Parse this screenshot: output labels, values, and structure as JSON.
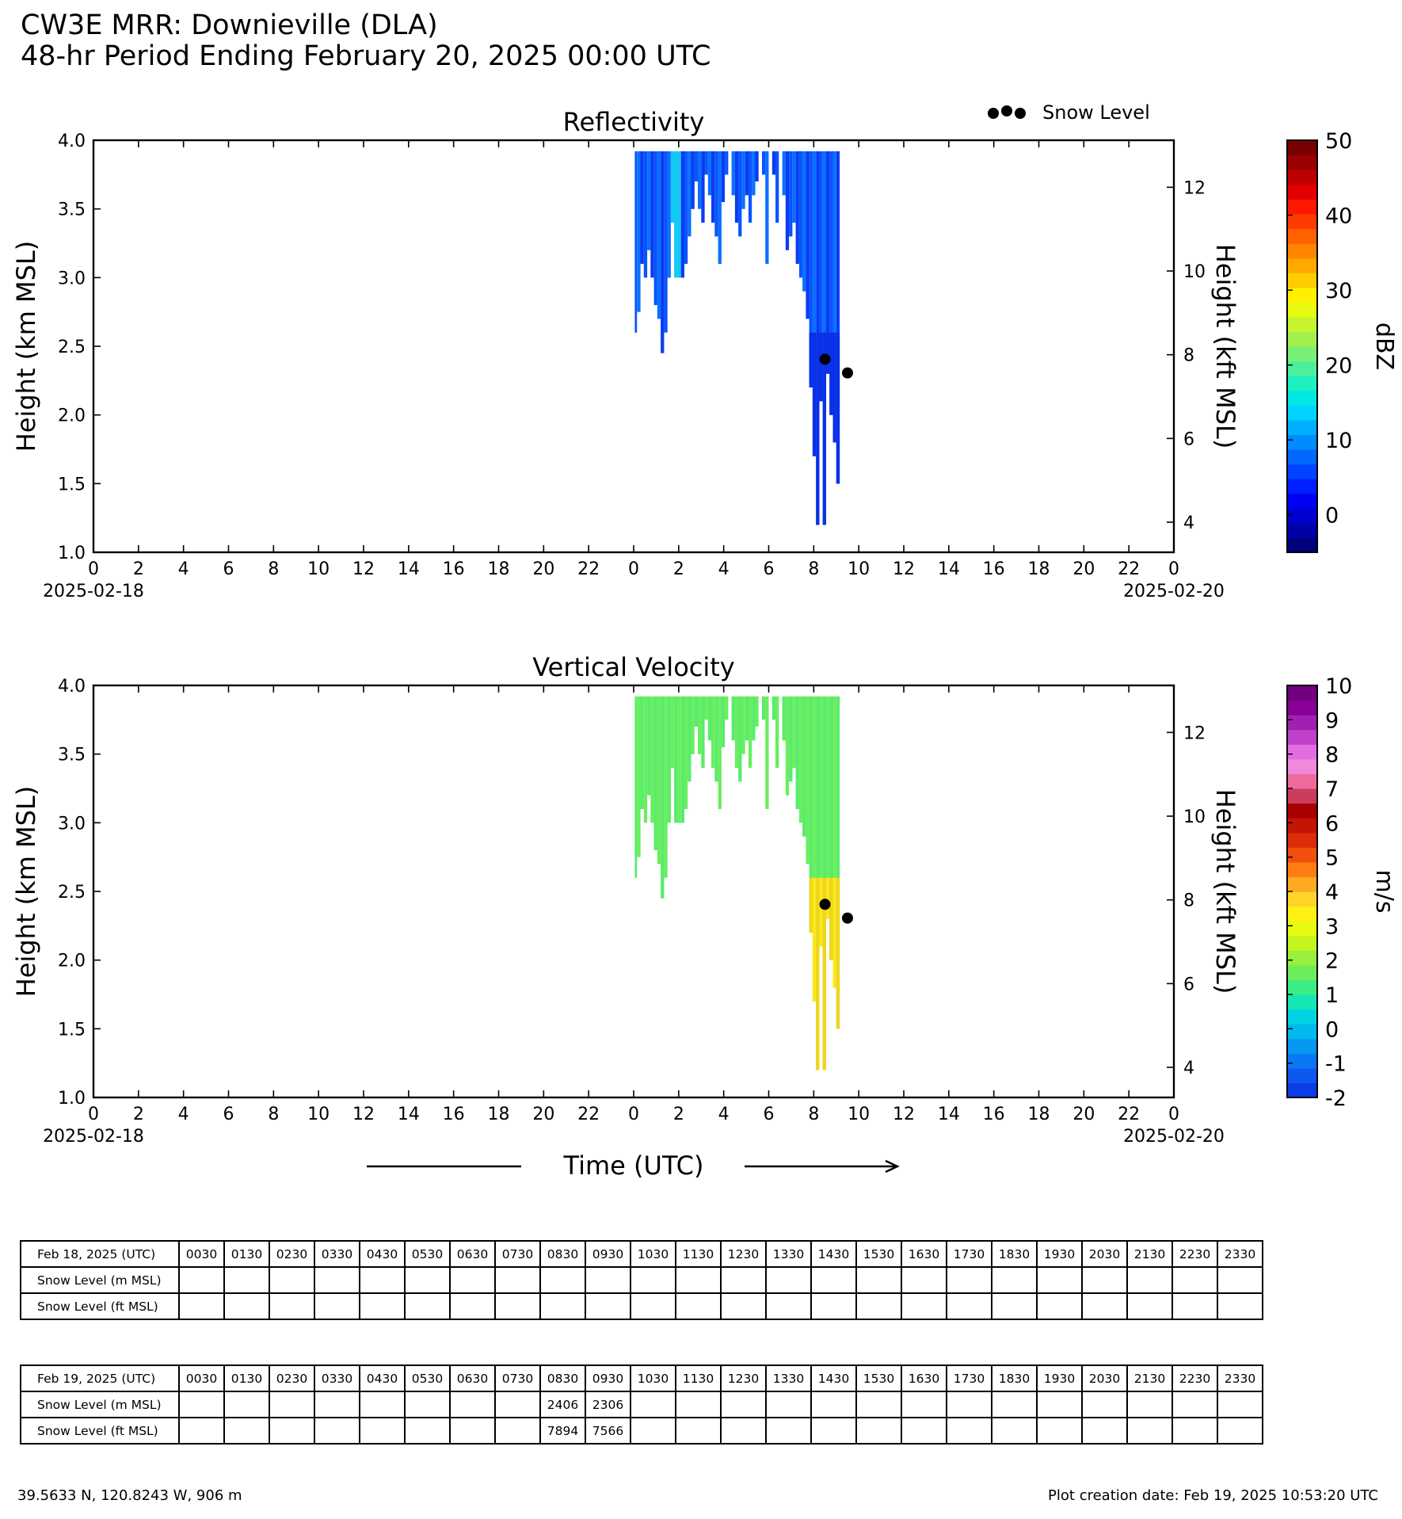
{
  "header": {
    "title": "CW3E MRR: Downieville (DLA)",
    "subtitle": "48-hr Period Ending February 20, 2025 00:00 UTC"
  },
  "legend": {
    "snow_level_label": "Snow Level"
  },
  "chart_data": [
    {
      "type": "heatmap",
      "title": "Reflectivity",
      "ylabel": "Height (km MSL)",
      "ylabel_right": "Height (kft MSL)",
      "ylim": [
        1.0,
        4.0
      ],
      "yticks": [
        "1.0",
        "1.5",
        "2.0",
        "2.5",
        "3.0",
        "3.5",
        "4.0"
      ],
      "yticks_right": [
        "4",
        "6",
        "8",
        "10",
        "12"
      ],
      "xlim_hours": [
        0,
        48
      ],
      "xticks": [
        "0",
        "2",
        "4",
        "6",
        "8",
        "10",
        "12",
        "14",
        "16",
        "18",
        "20",
        "22",
        "0",
        "2",
        "4",
        "6",
        "8",
        "10",
        "12",
        "14",
        "16",
        "18",
        "20",
        "22",
        "0"
      ],
      "x_date_start": "2025-02-18",
      "x_date_end": "2025-02-20",
      "colorbar": {
        "label": "dBZ",
        "min": -5,
        "max": 50,
        "ticks": [
          "0",
          "10",
          "20",
          "30",
          "40",
          "50"
        ],
        "colors": [
          "#00007a",
          "#0000a8",
          "#0000d0",
          "#0000f2",
          "#0020ff",
          "#0044ff",
          "#0068ff",
          "#008cff",
          "#00b0ff",
          "#00d4ff",
          "#00e8e4",
          "#1ff0c0",
          "#4cf09c",
          "#78f078",
          "#a2ef4e",
          "#c6f52e",
          "#e8fa12",
          "#fff000",
          "#ffcc00",
          "#ffa800",
          "#ff8400",
          "#ff6000",
          "#ff3c00",
          "#ff1800",
          "#e40000",
          "#c00000",
          "#9a0000",
          "#780000"
        ]
      },
      "echo_profiles": [
        {
          "h": 24.05,
          "bottom_km": 2.6
        },
        {
          "h": 24.15,
          "bottom_km": 2.75
        },
        {
          "h": 24.3,
          "bottom_km": 3.1
        },
        {
          "h": 24.45,
          "bottom_km": 3.0
        },
        {
          "h": 24.6,
          "bottom_km": 3.2
        },
        {
          "h": 24.75,
          "bottom_km": 3.0
        },
        {
          "h": 24.9,
          "bottom_km": 2.8
        },
        {
          "h": 25.05,
          "bottom_km": 2.7
        },
        {
          "h": 25.2,
          "bottom_km": 2.45
        },
        {
          "h": 25.35,
          "bottom_km": 2.6
        },
        {
          "h": 25.5,
          "bottom_km": 3.0
        },
        {
          "h": 25.65,
          "bottom_km": 3.4
        },
        {
          "h": 25.8,
          "bottom_km": 3.0
        },
        {
          "h": 25.95,
          "bottom_km": 3.0
        },
        {
          "h": 26.1,
          "bottom_km": 3.0
        },
        {
          "h": 26.25,
          "bottom_km": 3.1
        },
        {
          "h": 26.4,
          "bottom_km": 3.3
        },
        {
          "h": 26.55,
          "bottom_km": 3.5
        },
        {
          "h": 26.7,
          "bottom_km": 3.7
        },
        {
          "h": 26.85,
          "bottom_km": 3.5
        },
        {
          "h": 27.0,
          "bottom_km": 3.4
        },
        {
          "h": 27.15,
          "bottom_km": 3.75
        },
        {
          "h": 27.3,
          "bottom_km": 3.6
        },
        {
          "h": 27.45,
          "bottom_km": 3.4
        },
        {
          "h": 27.6,
          "bottom_km": 3.3
        },
        {
          "h": 27.75,
          "bottom_km": 3.1
        },
        {
          "h": 27.9,
          "bottom_km": 3.55
        },
        {
          "h": 28.05,
          "bottom_km": 3.75
        },
        {
          "h": 28.35,
          "bottom_km": 3.6
        },
        {
          "h": 28.5,
          "bottom_km": 3.4
        },
        {
          "h": 28.65,
          "bottom_km": 3.3
        },
        {
          "h": 28.8,
          "bottom_km": 3.5
        },
        {
          "h": 28.95,
          "bottom_km": 3.6
        },
        {
          "h": 29.1,
          "bottom_km": 3.4
        },
        {
          "h": 29.25,
          "bottom_km": 3.6
        },
        {
          "h": 29.4,
          "bottom_km": 3.7
        },
        {
          "h": 29.7,
          "bottom_km": 3.75
        },
        {
          "h": 29.85,
          "bottom_km": 3.1
        },
        {
          "h": 30.15,
          "bottom_km": 3.75
        },
        {
          "h": 30.3,
          "bottom_km": 3.4
        },
        {
          "h": 30.6,
          "bottom_km": 3.6
        },
        {
          "h": 30.75,
          "bottom_km": 3.2
        },
        {
          "h": 30.9,
          "bottom_km": 3.3
        },
        {
          "h": 31.05,
          "bottom_km": 3.4
        },
        {
          "h": 31.2,
          "bottom_km": 3.1
        },
        {
          "h": 31.35,
          "bottom_km": 3.0
        },
        {
          "h": 31.5,
          "bottom_km": 2.9
        },
        {
          "h": 31.65,
          "bottom_km": 2.7
        },
        {
          "h": 31.8,
          "bottom_km": 2.2
        },
        {
          "h": 31.95,
          "bottom_km": 1.7
        },
        {
          "h": 32.1,
          "bottom_km": 1.2
        },
        {
          "h": 32.25,
          "bottom_km": 2.1
        },
        {
          "h": 32.4,
          "bottom_km": 1.2
        },
        {
          "h": 32.55,
          "bottom_km": 2.3
        },
        {
          "h": 32.7,
          "bottom_km": 2.0
        },
        {
          "h": 32.85,
          "bottom_km": 1.8
        },
        {
          "h": 33.0,
          "bottom_km": 1.5
        }
      ],
      "snow_level_points": [
        {
          "h": 32.5,
          "km": 2.406
        },
        {
          "h": 33.5,
          "km": 2.306
        }
      ]
    },
    {
      "type": "heatmap",
      "title": "Vertical Velocity",
      "ylabel": "Height (km MSL)",
      "ylabel_right": "Height (kft MSL)",
      "xlabel": "Time (UTC)",
      "ylim": [
        1.0,
        4.0
      ],
      "yticks": [
        "1.0",
        "1.5",
        "2.0",
        "2.5",
        "3.0",
        "3.5",
        "4.0"
      ],
      "yticks_right": [
        "4",
        "6",
        "8",
        "10",
        "12"
      ],
      "xlim_hours": [
        0,
        48
      ],
      "xticks": [
        "0",
        "2",
        "4",
        "6",
        "8",
        "10",
        "12",
        "14",
        "16",
        "18",
        "20",
        "22",
        "0",
        "2",
        "4",
        "6",
        "8",
        "10",
        "12",
        "14",
        "16",
        "18",
        "20",
        "22",
        "0"
      ],
      "x_date_start": "2025-02-18",
      "x_date_end": "2025-02-20",
      "colorbar": {
        "label": "m/s",
        "min": -2,
        "max": 10,
        "ticks": [
          "-2",
          "-1",
          "0",
          "1",
          "2",
          "3",
          "4",
          "5",
          "6",
          "7",
          "8",
          "9",
          "10"
        ],
        "colors": [
          "#0a3ce8",
          "#0e58f0",
          "#0a78f4",
          "#0698f0",
          "#02b8ec",
          "#00d4e4",
          "#14e6b4",
          "#3cec84",
          "#6cee5c",
          "#98f03c",
          "#c4f51e",
          "#e8fa10",
          "#fff014",
          "#ffd428",
          "#ffaa20",
          "#ff7c14",
          "#f0500c",
          "#dc2c08",
          "#c41404",
          "#a80000",
          "#cc3c5c",
          "#ee6a9a",
          "#f088dc",
          "#e06ee0",
          "#c040c8",
          "#a020b0",
          "#880098",
          "#720080"
        ]
      },
      "echo_profiles": [
        {
          "h": 24.05,
          "bottom_km": 2.6
        },
        {
          "h": 24.15,
          "bottom_km": 2.75
        },
        {
          "h": 24.3,
          "bottom_km": 3.1
        },
        {
          "h": 24.45,
          "bottom_km": 3.0
        },
        {
          "h": 24.6,
          "bottom_km": 3.2
        },
        {
          "h": 24.75,
          "bottom_km": 3.0
        },
        {
          "h": 24.9,
          "bottom_km": 2.8
        },
        {
          "h": 25.05,
          "bottom_km": 2.7
        },
        {
          "h": 25.2,
          "bottom_km": 2.45
        },
        {
          "h": 25.35,
          "bottom_km": 2.6
        },
        {
          "h": 25.5,
          "bottom_km": 3.0
        },
        {
          "h": 25.65,
          "bottom_km": 3.4
        },
        {
          "h": 25.8,
          "bottom_km": 3.0
        },
        {
          "h": 25.95,
          "bottom_km": 3.0
        },
        {
          "h": 26.1,
          "bottom_km": 3.0
        },
        {
          "h": 26.25,
          "bottom_km": 3.1
        },
        {
          "h": 26.4,
          "bottom_km": 3.3
        },
        {
          "h": 26.55,
          "bottom_km": 3.5
        },
        {
          "h": 26.7,
          "bottom_km": 3.7
        },
        {
          "h": 26.85,
          "bottom_km": 3.5
        },
        {
          "h": 27.0,
          "bottom_km": 3.4
        },
        {
          "h": 27.15,
          "bottom_km": 3.75
        },
        {
          "h": 27.3,
          "bottom_km": 3.6
        },
        {
          "h": 27.45,
          "bottom_km": 3.4
        },
        {
          "h": 27.6,
          "bottom_km": 3.3
        },
        {
          "h": 27.75,
          "bottom_km": 3.1
        },
        {
          "h": 27.9,
          "bottom_km": 3.55
        },
        {
          "h": 28.05,
          "bottom_km": 3.75
        },
        {
          "h": 28.35,
          "bottom_km": 3.6
        },
        {
          "h": 28.5,
          "bottom_km": 3.4
        },
        {
          "h": 28.65,
          "bottom_km": 3.3
        },
        {
          "h": 28.8,
          "bottom_km": 3.5
        },
        {
          "h": 28.95,
          "bottom_km": 3.6
        },
        {
          "h": 29.1,
          "bottom_km": 3.4
        },
        {
          "h": 29.25,
          "bottom_km": 3.6
        },
        {
          "h": 29.4,
          "bottom_km": 3.7
        },
        {
          "h": 29.7,
          "bottom_km": 3.75
        },
        {
          "h": 29.85,
          "bottom_km": 3.1
        },
        {
          "h": 30.15,
          "bottom_km": 3.75
        },
        {
          "h": 30.3,
          "bottom_km": 3.4
        },
        {
          "h": 30.6,
          "bottom_km": 3.6
        },
        {
          "h": 30.75,
          "bottom_km": 3.2
        },
        {
          "h": 30.9,
          "bottom_km": 3.3
        },
        {
          "h": 31.05,
          "bottom_km": 3.4
        },
        {
          "h": 31.2,
          "bottom_km": 3.1
        },
        {
          "h": 31.35,
          "bottom_km": 3.0
        },
        {
          "h": 31.5,
          "bottom_km": 2.9
        },
        {
          "h": 31.65,
          "bottom_km": 2.7
        },
        {
          "h": 31.8,
          "bottom_km": 2.2
        },
        {
          "h": 31.95,
          "bottom_km": 1.7
        },
        {
          "h": 32.1,
          "bottom_km": 1.2
        },
        {
          "h": 32.25,
          "bottom_km": 2.1
        },
        {
          "h": 32.4,
          "bottom_km": 1.2
        },
        {
          "h": 32.55,
          "bottom_km": 2.3
        },
        {
          "h": 32.7,
          "bottom_km": 2.0
        },
        {
          "h": 32.85,
          "bottom_km": 1.8
        },
        {
          "h": 33.0,
          "bottom_km": 1.5
        }
      ],
      "snow_level_points": [
        {
          "h": 32.5,
          "km": 2.406
        },
        {
          "h": 33.5,
          "km": 2.306
        }
      ]
    }
  ],
  "tables": [
    {
      "date_label": "Feb 18, 2025 (UTC)",
      "rows": [
        {
          "label": "Snow Level (m MSL)",
          "values": [
            "",
            "",
            "",
            "",
            "",
            "",
            "",
            "",
            "",
            "",
            "",
            "",
            "",
            "",
            "",
            "",
            "",
            "",
            "",
            "",
            "",
            "",
            "",
            ""
          ]
        },
        {
          "label": "Snow Level (ft MSL)",
          "values": [
            "",
            "",
            "",
            "",
            "",
            "",
            "",
            "",
            "",
            "",
            "",
            "",
            "",
            "",
            "",
            "",
            "",
            "",
            "",
            "",
            "",
            "",
            "",
            ""
          ]
        }
      ]
    },
    {
      "date_label": "Feb 19, 2025 (UTC)",
      "rows": [
        {
          "label": "Snow Level (m MSL)",
          "values": [
            "",
            "",
            "",
            "",
            "",
            "",
            "",
            "",
            "2406",
            "2306",
            "",
            "",
            "",
            "",
            "",
            "",
            "",
            "",
            "",
            "",
            "",
            "",
            "",
            ""
          ]
        },
        {
          "label": "Snow Level (ft MSL)",
          "values": [
            "",
            "",
            "",
            "",
            "",
            "",
            "",
            "",
            "7894",
            "7566",
            "",
            "",
            "",
            "",
            "",
            "",
            "",
            "",
            "",
            "",
            "",
            "",
            "",
            ""
          ]
        }
      ]
    }
  ],
  "time_columns": [
    "0030",
    "0130",
    "0230",
    "0330",
    "0430",
    "0530",
    "0630",
    "0730",
    "0830",
    "0930",
    "1030",
    "1130",
    "1230",
    "1330",
    "1430",
    "1530",
    "1630",
    "1730",
    "1830",
    "1930",
    "2030",
    "2130",
    "2230",
    "2330"
  ],
  "footer": {
    "location": "39.5633 N, 120.8243 W, 906 m",
    "creation_date": "Plot creation date: Feb 19, 2025 10:53:20 UTC"
  }
}
